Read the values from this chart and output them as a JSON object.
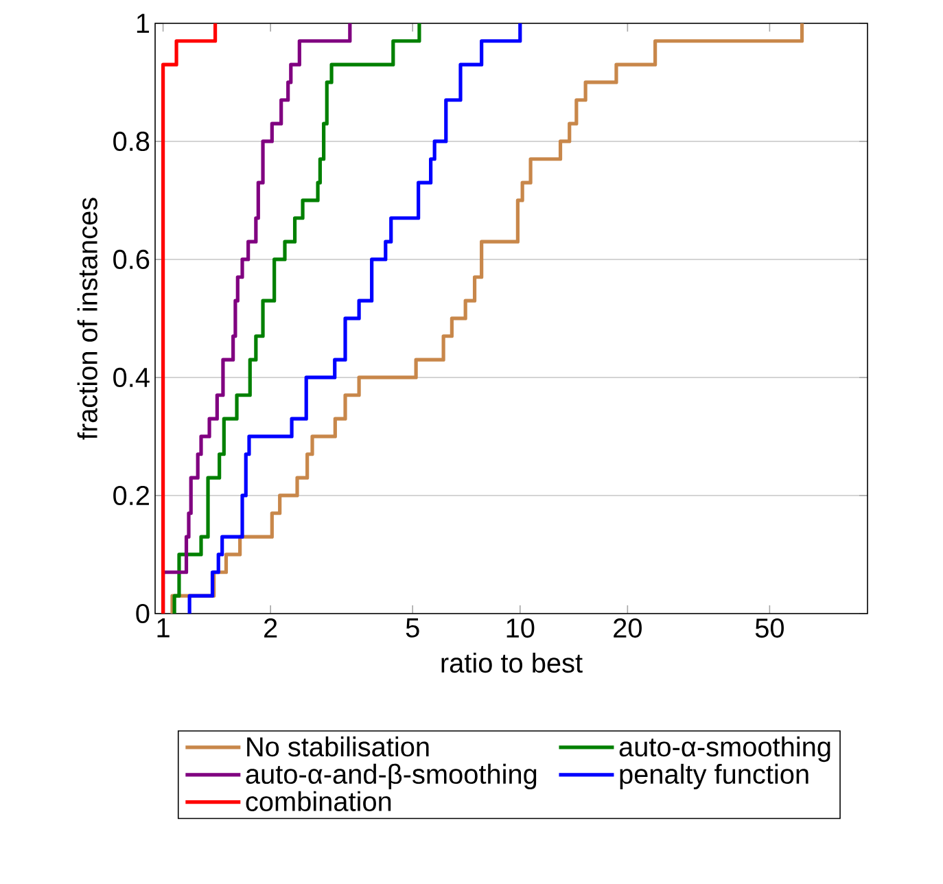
{
  "chart_data": {
    "type": "step",
    "xlabel": "ratio to best",
    "ylabel": "fraction of instances",
    "log": "x",
    "xlim": [
      0.95,
      94
    ],
    "ylim": [
      0,
      1
    ],
    "xticks": [
      1,
      2,
      5,
      10,
      20,
      50
    ],
    "yticks": [
      0,
      0.2,
      0.4,
      0.6,
      0.8,
      1
    ],
    "grid": "y",
    "legend": "bottom",
    "line_style": "solid",
    "marker": "none",
    "series": [
      {
        "name": "No stabilisation",
        "color": "#c8874a",
        "x": [
          1.061,
          1.061,
          1.388,
          1.502,
          1.642,
          2.019,
          2.123,
          2.375,
          2.534,
          2.618,
          3.034,
          3.238,
          3.539,
          5.11,
          6.1,
          6.44,
          7.03,
          7.46,
          7.8,
          9.85,
          10.15,
          10.7,
          12.97,
          13.75,
          14.38,
          15.25,
          18.6,
          23.9,
          61.6
        ],
        "values": [
          0,
          0.03,
          0.07,
          0.1,
          0.13,
          0.17,
          0.2,
          0.23,
          0.27,
          0.3,
          0.33,
          0.37,
          0.4,
          0.43,
          0.47,
          0.5,
          0.53,
          0.57,
          0.63,
          0.7,
          0.73,
          0.77,
          0.8,
          0.83,
          0.87,
          0.9,
          0.93,
          0.97,
          1.0
        ]
      },
      {
        "name": "auto-α-smoothing",
        "color": "#008000",
        "x": [
          1.076,
          1.076,
          1.109,
          1.278,
          1.336,
          1.438,
          1.481,
          1.609,
          1.752,
          1.82,
          1.904,
          2.049,
          2.193,
          2.339,
          2.461,
          2.713,
          2.753,
          2.818,
          2.876,
          2.964,
          4.41,
          5.22
        ],
        "values": [
          0,
          0.03,
          0.1,
          0.13,
          0.23,
          0.27,
          0.33,
          0.37,
          0.43,
          0.47,
          0.53,
          0.6,
          0.63,
          0.67,
          0.7,
          0.73,
          0.77,
          0.83,
          0.9,
          0.93,
          0.97,
          1.0
        ]
      },
      {
        "name": "auto-α-and-β-smoothing",
        "color": "#800080",
        "x": [
          1.0,
          1.0,
          1.162,
          1.18,
          1.197,
          1.251,
          1.278,
          1.348,
          1.417,
          1.472,
          1.571,
          1.594,
          1.618,
          1.667,
          1.732,
          1.82,
          1.848,
          1.904,
          2.019,
          2.142,
          2.239,
          2.28,
          2.41,
          3.337
        ],
        "values": [
          0,
          0.07,
          0.13,
          0.17,
          0.23,
          0.27,
          0.3,
          0.33,
          0.37,
          0.43,
          0.47,
          0.53,
          0.57,
          0.6,
          0.63,
          0.67,
          0.73,
          0.8,
          0.83,
          0.87,
          0.9,
          0.93,
          0.97,
          1.0
        ]
      },
      {
        "name": "penalty function",
        "color": "#0000ff",
        "x": [
          1.186,
          1.186,
          1.375,
          1.429,
          1.464,
          1.667,
          1.706,
          1.742,
          2.293,
          2.518,
          3.026,
          3.238,
          3.539,
          3.842,
          4.2,
          4.35,
          5.19,
          5.62,
          5.76,
          6.2,
          6.81,
          7.8,
          10.0
        ],
        "values": [
          0,
          0.03,
          0.07,
          0.1,
          0.13,
          0.2,
          0.27,
          0.3,
          0.33,
          0.4,
          0.43,
          0.5,
          0.53,
          0.6,
          0.63,
          0.67,
          0.73,
          0.77,
          0.8,
          0.87,
          0.93,
          0.97,
          1.0
        ]
      },
      {
        "name": "combination",
        "color": "#ff0000",
        "x": [
          1.0,
          1.0,
          1.09,
          1.4
        ],
        "values": [
          0,
          0.93,
          0.97,
          1.0
        ]
      }
    ]
  }
}
